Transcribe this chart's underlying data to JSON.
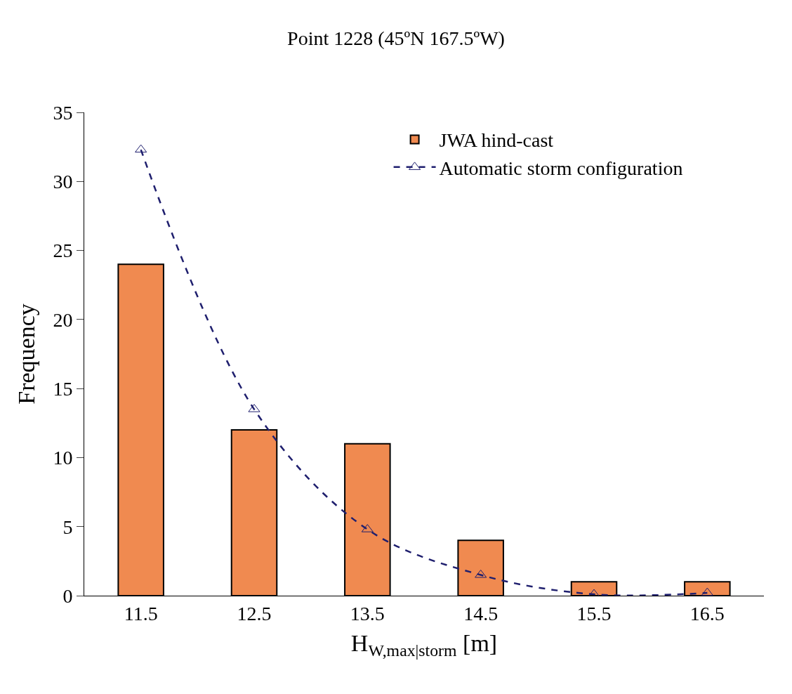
{
  "chart_data": {
    "type": "bar",
    "title": "Point 1228 (45ºN 167.5ºW)",
    "xlabel": "H$_{W,max|storm}$ [m]",
    "ylabel": "Frequency",
    "categories": [
      "11.5",
      "12.5",
      "13.5",
      "14.5",
      "15.5",
      "16.5"
    ],
    "series": [
      {
        "name": "JWA hind-cast",
        "color": "#f08a50",
        "values": [
          24,
          12,
          11,
          4,
          1,
          1
        ]
      },
      {
        "name": "Automatic storm configuration",
        "type": "line",
        "color": "#1f1f6e",
        "values": [
          32.3,
          13.5,
          4.8,
          1.5,
          0.1,
          0.2
        ],
        "marker": "triangle",
        "line_style": "dashed"
      }
    ],
    "ylim": [
      0,
      35
    ],
    "yticks": [
      0,
      5,
      10,
      15,
      20,
      25,
      30,
      35
    ],
    "legend": "top right"
  }
}
